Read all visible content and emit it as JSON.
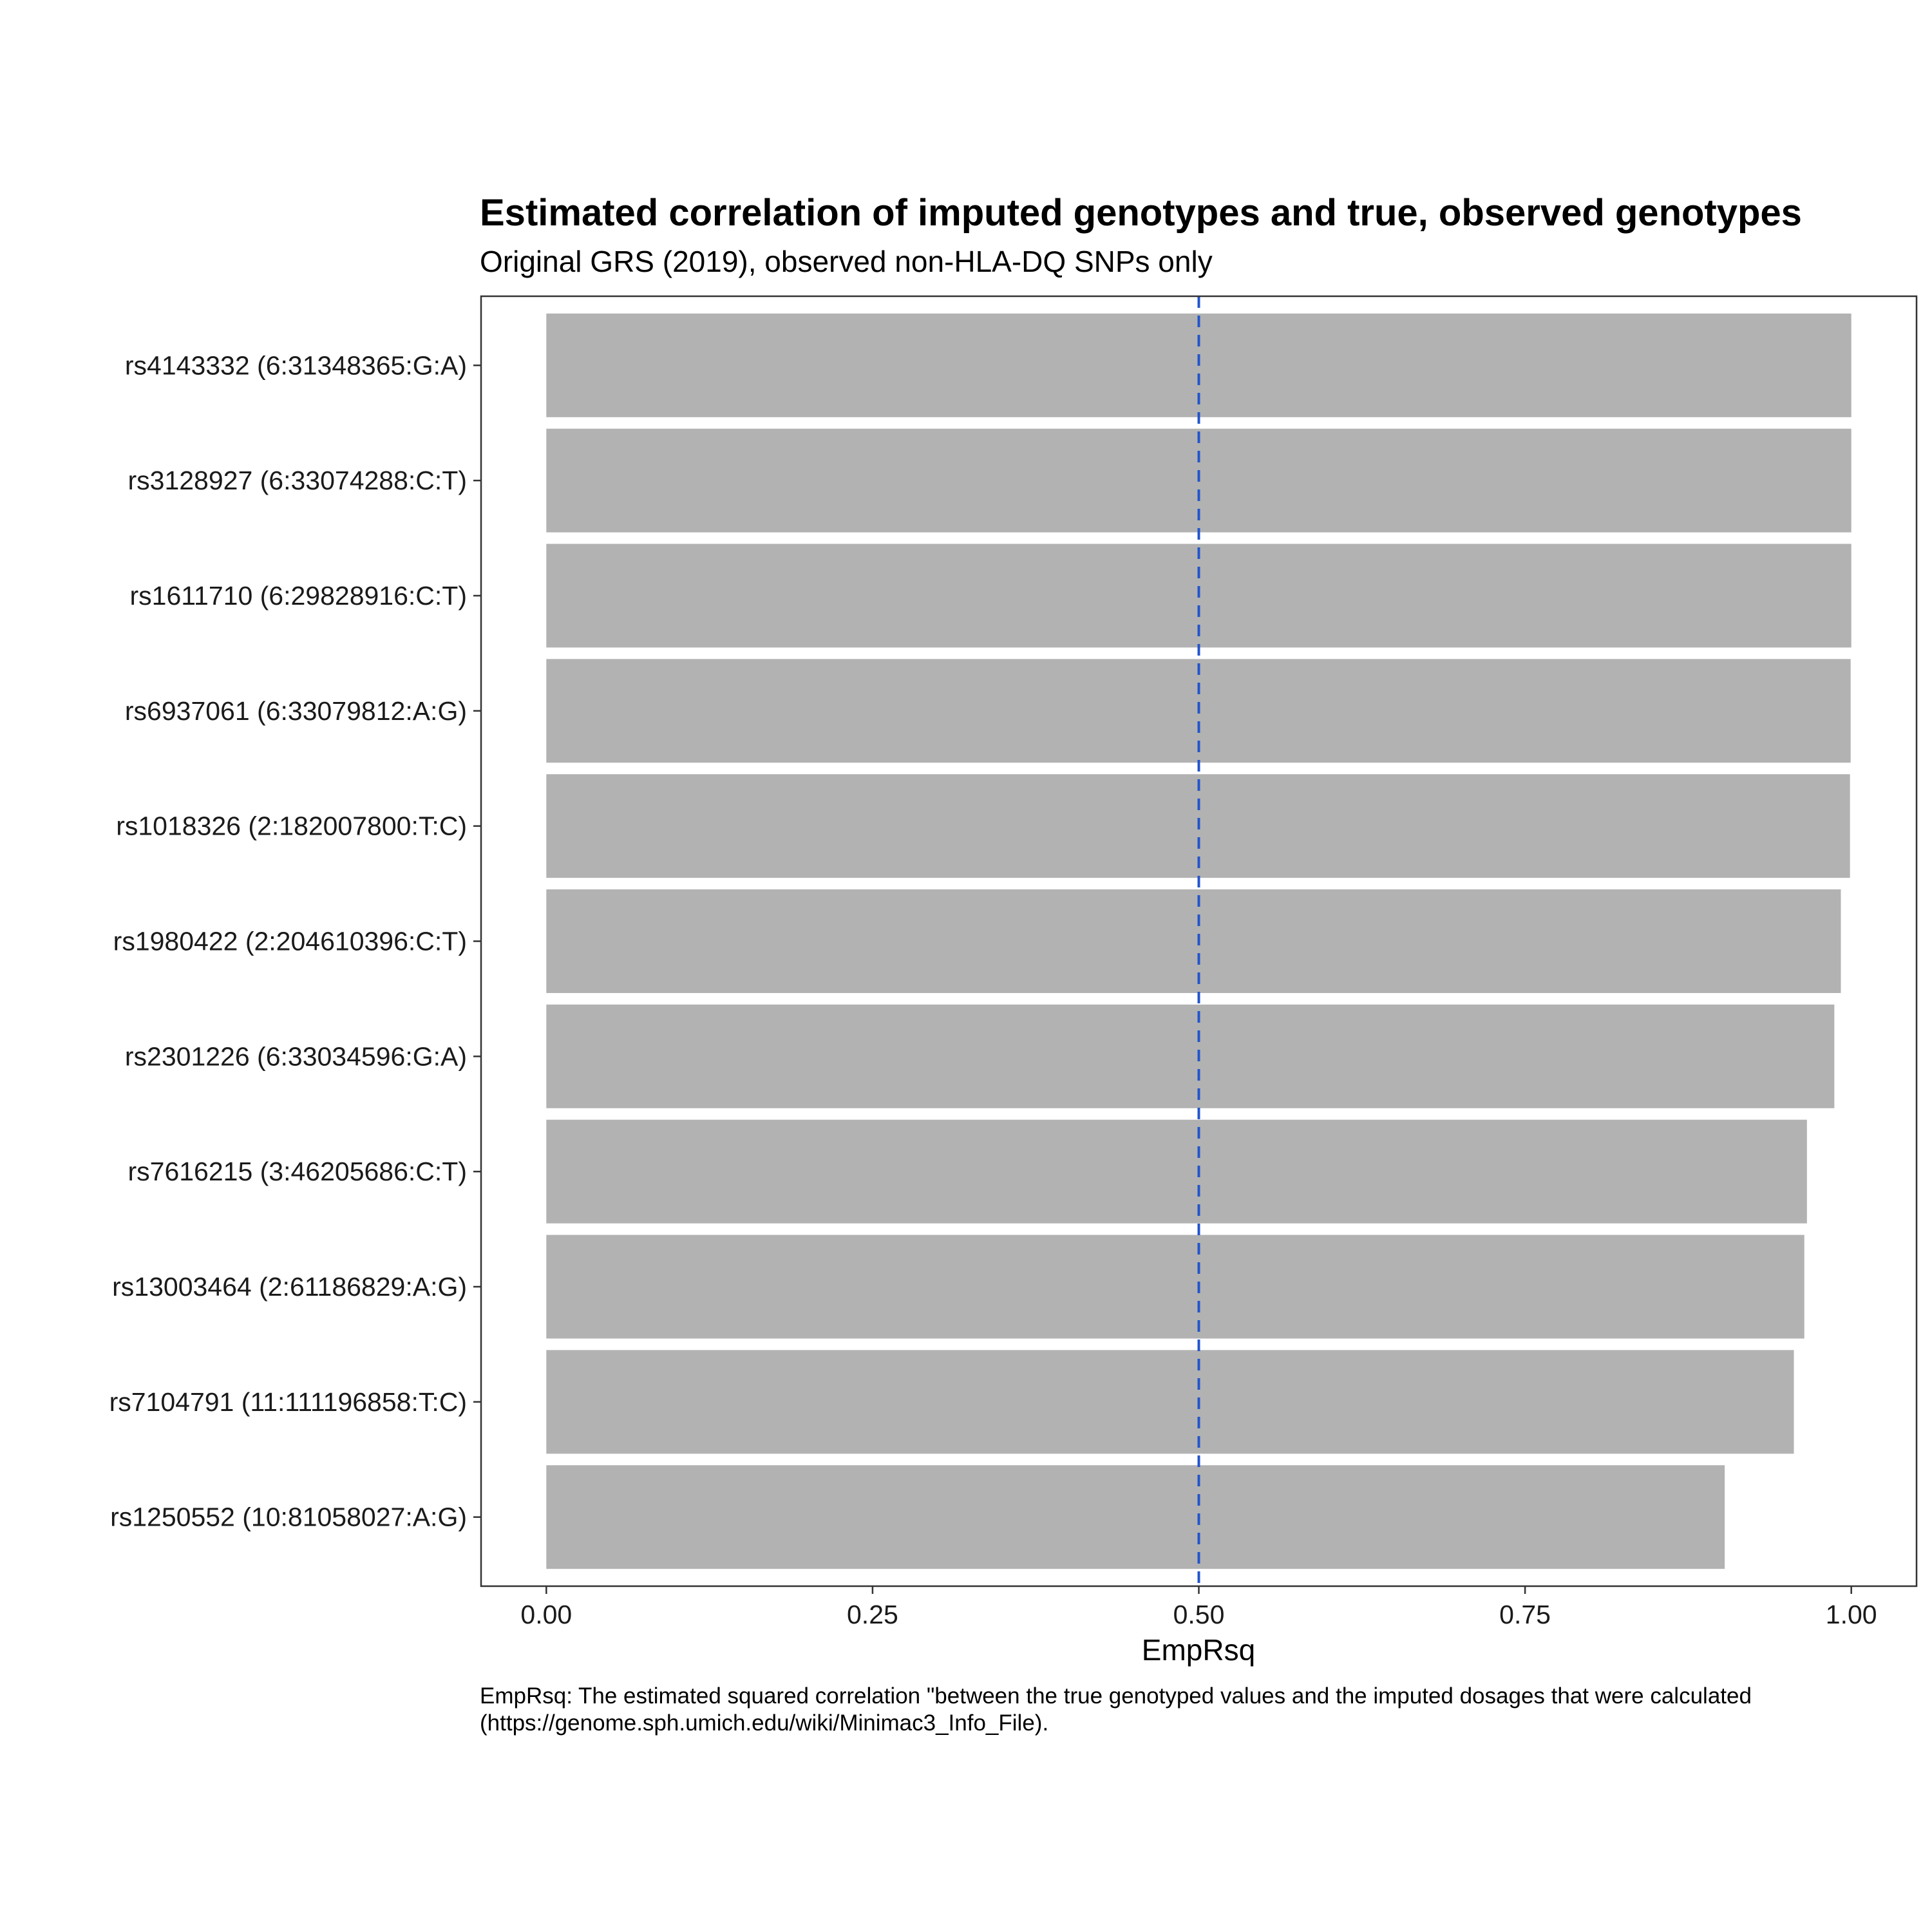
{
  "chart_data": {
    "type": "bar",
    "orientation": "horizontal",
    "title": "Estimated correlation of imputed genotypes and true, observed genotypes",
    "subtitle": "Original GRS (2019), observed non-HLA-DQ SNPs only",
    "xlabel": "EmpRsq",
    "ylabel": "",
    "xlim": [
      -0.05,
      1.05
    ],
    "x_ticks": [
      "0.00",
      "0.25",
      "0.50",
      "0.75",
      "1.00"
    ],
    "categories": [
      "rs4143332 (6:31348365:G:A)",
      "rs3128927 (6:33074288:C:T)",
      "rs1611710 (6:29828916:C:T)",
      "rs6937061 (6:33079812:A:G)",
      "rs1018326 (2:182007800:T:C)",
      "rs1980422 (2:204610396:C:T)",
      "rs2301226 (6:33034596:G:A)",
      "rs7616215 (3:46205686:C:T)",
      "rs13003464 (2:61186829:A:G)",
      "rs7104791 (11:111196858:T:C)",
      "rs1250552 (10:81058027:A:G)"
    ],
    "values": [
      1.0,
      1.0,
      1.0,
      0.9995,
      0.999,
      0.992,
      0.987,
      0.966,
      0.964,
      0.956,
      0.903
    ],
    "reference_line": {
      "x": 0.5,
      "style": "dashed",
      "color": "#2255cc"
    },
    "bar_color": "#b2b2b2",
    "grid": false,
    "legend": "none",
    "caption_lines": [
      "EmpRsq: The estimated squared correlation \"between the true genotyped values and the imputed dosages that were calculated",
      "(https://genome.sph.umich.edu/wiki/Minimac3_Info_File)."
    ]
  }
}
